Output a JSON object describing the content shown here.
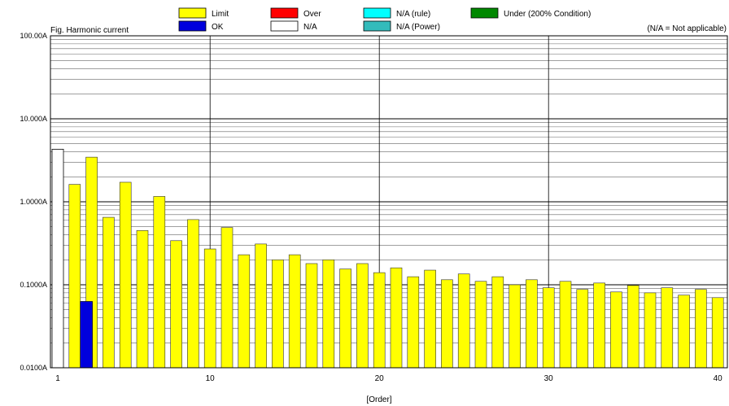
{
  "chart_data": {
    "type": "bar",
    "title": "Fig. Harmonic current",
    "note": "(N/A = Not applicable)",
    "xlabel": "[Order]",
    "ylabel": "",
    "y_scale": "log",
    "ylim": [
      0.01,
      100
    ],
    "y_ticks": [
      "0.0100A",
      "0.1000A",
      "1.0000A",
      "10.000A",
      "100.00A"
    ],
    "x_ticks": [
      "1",
      "10",
      "20",
      "30",
      "40"
    ],
    "legend": {
      "placement": "top",
      "items": [
        {
          "label": "Limit",
          "color": "#ffff00"
        },
        {
          "label": "OK",
          "color": "#0000dd"
        },
        {
          "label": "Over",
          "color": "#ff0000"
        },
        {
          "label": "N/A",
          "color": "#ffffff"
        },
        {
          "label": "N/A (rule)",
          "color": "#00ffff"
        },
        {
          "label": "N/A (Power)",
          "color": "#33bbbb"
        },
        {
          "label": "Under (200% Condition)",
          "color": "#008800"
        }
      ]
    },
    "orders": [
      1,
      2,
      3,
      4,
      5,
      6,
      7,
      8,
      9,
      10,
      11,
      12,
      13,
      14,
      15,
      16,
      17,
      18,
      19,
      20,
      21,
      22,
      23,
      24,
      25,
      26,
      27,
      28,
      29,
      30,
      31,
      32,
      33,
      34,
      35,
      36,
      37,
      38,
      39,
      40
    ],
    "series": [
      {
        "name": "Limit",
        "color": "#ffff00",
        "values": [
          null,
          1.62,
          3.45,
          0.65,
          1.72,
          0.45,
          1.16,
          0.34,
          0.61,
          0.27,
          0.49,
          0.23,
          0.31,
          0.2,
          0.23,
          0.18,
          0.2,
          0.155,
          0.18,
          0.14,
          0.16,
          0.125,
          0.15,
          0.115,
          0.135,
          0.11,
          0.125,
          0.1,
          0.115,
          0.092,
          0.11,
          0.088,
          0.105,
          0.082,
          0.098,
          0.08,
          0.092,
          0.075,
          0.088,
          0.07
        ]
      },
      {
        "name": "OK",
        "color": "#0000dd",
        "values": [
          null,
          null,
          0.063,
          null,
          null,
          null,
          null,
          null,
          null,
          null,
          null,
          null,
          null,
          null,
          null,
          null,
          null,
          null,
          null,
          null,
          null,
          null,
          null,
          null,
          null,
          null,
          null,
          null,
          null,
          null,
          null,
          null,
          null,
          null,
          null,
          null,
          null,
          null,
          null,
          null
        ]
      },
      {
        "name": "N/A",
        "color": "#ffffff",
        "values": [
          4.3,
          null,
          null,
          null,
          null,
          null,
          null,
          null,
          null,
          null,
          null,
          null,
          null,
          null,
          null,
          null,
          null,
          null,
          null,
          null,
          null,
          null,
          null,
          null,
          null,
          null,
          null,
          null,
          null,
          null,
          null,
          null,
          null,
          null,
          null,
          null,
          null,
          null,
          null,
          null
        ]
      }
    ]
  }
}
